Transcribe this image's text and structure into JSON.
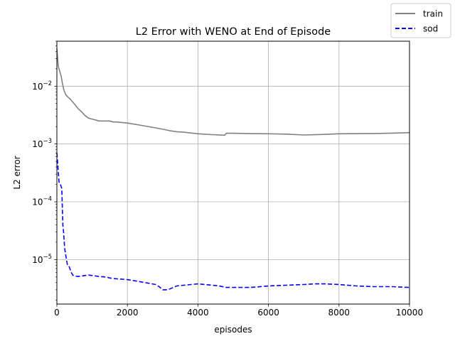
{
  "chart_data": {
    "type": "line",
    "title": "L2 Error with WENO at End of Episode",
    "xlabel": "episodes",
    "ylabel": "L2 error",
    "xlim": [
      0,
      10000
    ],
    "ylim": [
      1.7e-06,
      0.06
    ],
    "yscale": "log",
    "grid": true,
    "legend_position": "top-right (outside axes)",
    "x_ticks": [
      {
        "value": 0,
        "label": "0"
      },
      {
        "value": 2000,
        "label": "2000"
      },
      {
        "value": 4000,
        "label": "4000"
      },
      {
        "value": 6000,
        "label": "6000"
      },
      {
        "value": 8000,
        "label": "8000"
      },
      {
        "value": 10000,
        "label": "10000"
      }
    ],
    "y_ticks": [
      {
        "value": 1e-05,
        "base": "10",
        "exp": "−5"
      },
      {
        "value": 0.0001,
        "base": "10",
        "exp": "−4"
      },
      {
        "value": 0.001,
        "base": "10",
        "exp": "−3"
      },
      {
        "value": 0.01,
        "base": "10",
        "exp": "−2"
      }
    ],
    "series": [
      {
        "name": "train",
        "color": "#808080",
        "style": "solid",
        "x": [
          0,
          40,
          80,
          120,
          160,
          200,
          250,
          300,
          350,
          400,
          500,
          600,
          700,
          800,
          900,
          1000,
          1200,
          1400,
          1500,
          1600,
          1700,
          2000,
          2400,
          2800,
          3000,
          3200,
          3400,
          3600,
          4000,
          4400,
          4760,
          4800,
          5000,
          5500,
          6000,
          6500,
          7000,
          7500,
          8000,
          9000,
          9500,
          10000
        ],
        "y": [
          0.045,
          0.022,
          0.018,
          0.015,
          0.011,
          0.0085,
          0.0072,
          0.0066,
          0.0062,
          0.0058,
          0.0049,
          0.0041,
          0.0036,
          0.0031,
          0.0028,
          0.0027,
          0.0025,
          0.0025,
          0.0025,
          0.0024,
          0.0024,
          0.0023,
          0.0021,
          0.0019,
          0.0018,
          0.0017,
          0.00163,
          0.0016,
          0.0015,
          0.00145,
          0.00142,
          0.00153,
          0.00153,
          0.00151,
          0.0015,
          0.00148,
          0.00143,
          0.00146,
          0.0015,
          0.00152,
          0.00154,
          0.00157
        ]
      },
      {
        "name": "sod",
        "color": "#0000ff",
        "style": "dashed",
        "x": [
          0,
          30,
          60,
          100,
          140,
          170,
          190,
          220,
          260,
          300,
          350,
          400,
          420,
          450,
          500,
          600,
          700,
          800,
          900,
          1000,
          1100,
          1200,
          1400,
          1500,
          1600,
          1800,
          2000,
          2200,
          2400,
          2600,
          2800,
          2900,
          3000,
          3100,
          3200,
          3300,
          3400,
          3600,
          3800,
          4000,
          4200,
          4400,
          4600,
          4800,
          5000,
          5500,
          6000,
          6500,
          7000,
          7300,
          7600,
          8000,
          8500,
          9000,
          9500,
          10000
        ],
        "y": [
          0.0007,
          0.0004,
          0.00022,
          0.0002,
          0.00017,
          4e-05,
          3e-05,
          1.6e-05,
          1.1e-05,
          8e-06,
          7.5e-06,
          6.2e-06,
          5.8e-06,
          5.4e-06,
          5.2e-06,
          5.1e-06,
          5.2e-06,
          5.3e-06,
          5.4e-06,
          5.3e-06,
          5.2e-06,
          5.1e-06,
          5e-06,
          4.8e-06,
          4.7e-06,
          4.6e-06,
          4.5e-06,
          4.3e-06,
          4.1e-06,
          3.9e-06,
          3.7e-06,
          3.4e-06,
          3e-06,
          3e-06,
          3.1e-06,
          3.3e-06,
          3.5e-06,
          3.6e-06,
          3.7e-06,
          3.8e-06,
          3.7e-06,
          3.6e-06,
          3.5e-06,
          3.3e-06,
          3.3e-06,
          3.3e-06,
          3.5e-06,
          3.6e-06,
          3.7e-06,
          3.8e-06,
          3.8e-06,
          3.7e-06,
          3.5e-06,
          3.4e-06,
          3.4e-06,
          3.3e-06
        ]
      }
    ]
  }
}
